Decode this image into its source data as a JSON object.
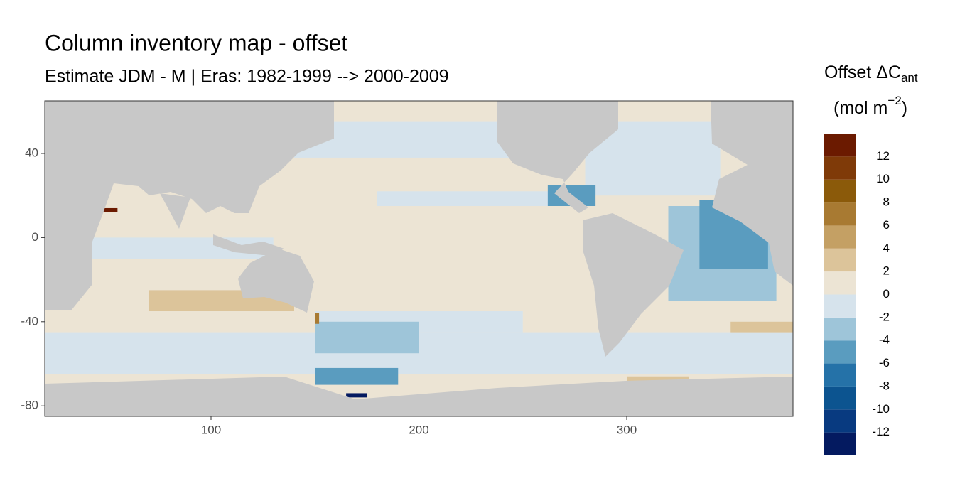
{
  "chart_data": {
    "type": "map",
    "title": "Column inventory map - offset",
    "subtitle": "Estimate JDM - M | Eras: 1982-1999 --> 2000-2009",
    "xlim": [
      20,
      380
    ],
    "ylim": [
      -85,
      65
    ],
    "xticks": [
      100,
      200,
      300
    ],
    "yticks": [
      40,
      0,
      -40,
      -80
    ],
    "regions": [
      {
        "lon": [
          20,
          380
        ],
        "lat": [
          -65,
          -45
        ],
        "value": -1
      },
      {
        "lon": [
          150,
          250
        ],
        "lat": [
          -45,
          -35
        ],
        "value": -1
      },
      {
        "lon": [
          40,
          130
        ],
        "lat": [
          -10,
          0
        ],
        "value": -1
      },
      {
        "lon": [
          140,
          250
        ],
        "lat": [
          38,
          55
        ],
        "value": -1
      },
      {
        "lon": [
          180,
          280
        ],
        "lat": [
          15,
          22
        ],
        "value": -1
      },
      {
        "lon": [
          280,
          345
        ],
        "lat": [
          20,
          55
        ],
        "value": -1
      },
      {
        "lon": [
          320,
          372
        ],
        "lat": [
          -30,
          15
        ],
        "value": -3
      },
      {
        "lon": [
          335,
          368
        ],
        "lat": [
          -15,
          18
        ],
        "value": -5
      },
      {
        "lon": [
          150,
          200
        ],
        "lat": [
          -55,
          -40
        ],
        "value": -3
      },
      {
        "lon": [
          150,
          190
        ],
        "lat": [
          -70,
          -62
        ],
        "value": -5
      },
      {
        "lon": [
          165,
          175
        ],
        "lat": [
          -76,
          -74
        ],
        "value": -13
      },
      {
        "lon": [
          70,
          140
        ],
        "lat": [
          -35,
          -25
        ],
        "value": 3
      },
      {
        "lon": [
          45,
          55
        ],
        "lat": [
          12,
          14
        ],
        "value": 13
      },
      {
        "lon": [
          262,
          285
        ],
        "lat": [
          15,
          25
        ],
        "value": -5
      },
      {
        "lon": [
          350,
          380
        ],
        "lat": [
          -45,
          -40
        ],
        "value": 3
      },
      {
        "lon": [
          300,
          330
        ],
        "lat": [
          -70,
          -66
        ],
        "value": 3
      },
      {
        "lon": [
          150,
          152
        ],
        "lat": [
          -41,
          -36
        ],
        "value": 7
      }
    ],
    "legend": {
      "title": {
        "text": "Offset ΔC",
        "sub": "ant"
      },
      "unit": {
        "text": "(mol m",
        "sup": "−2",
        "close": ")"
      },
      "breaks": [
        -14,
        -12,
        -10,
        -8,
        -6,
        -4,
        -2,
        0,
        2,
        4,
        6,
        8,
        10,
        12,
        14
      ],
      "colors": [
        "#041a60",
        "#083a80",
        "#0c5490",
        "#2572a8",
        "#5a9cbf",
        "#9ec5d9",
        "#d6e3ec",
        "#ece4d4",
        "#dcc49a",
        "#c4a064",
        "#a87a32",
        "#8b5a0a",
        "#7f3a08",
        "#6b1a00"
      ],
      "ticks": [
        12,
        10,
        8,
        6,
        4,
        2,
        0,
        -2,
        -4,
        -6,
        -8,
        -10,
        -12
      ]
    }
  }
}
